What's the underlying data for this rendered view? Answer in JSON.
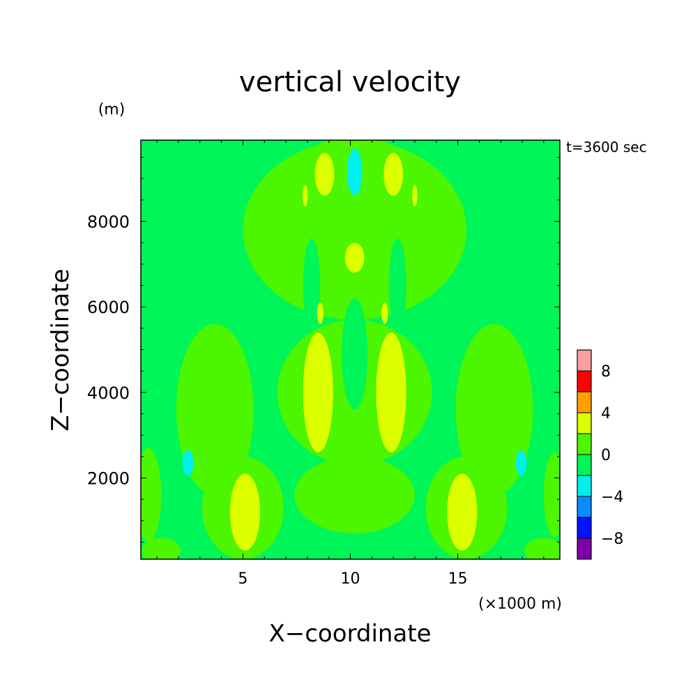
{
  "chart_data": {
    "type": "contour",
    "title": "vertical velocity",
    "time_label": "t=3600 sec",
    "xlabel": "X−coordinate",
    "ylabel": "Z−coordinate",
    "x_unit": "(×1000 m)",
    "y_unit": "(m)",
    "xlim": [
      0.25,
      19.75
    ],
    "ylim": [
      100,
      9900
    ],
    "x_ticks": [
      5,
      10,
      15
    ],
    "x_tick_labels": [
      "5",
      "10",
      "15"
    ],
    "y_ticks": [
      2000,
      4000,
      6000,
      8000
    ],
    "y_tick_labels": [
      "2000",
      "4000",
      "6000",
      "8000"
    ],
    "colorbar": {
      "levels": [
        -10,
        -8,
        -6,
        -4,
        -2,
        0,
        2,
        4,
        6,
        8,
        10
      ],
      "labels": [
        "−8",
        "−4",
        "0",
        "4",
        "8"
      ],
      "label_values": [
        -8,
        -4,
        0,
        4,
        8
      ],
      "colors": [
        "#7f00a8",
        "#0015ff",
        "#0a8cff",
        "#00f0f0",
        "#00f558",
        "#4cf500",
        "#dcff00",
        "#ffa000",
        "#ff0000",
        "#ffa0a0"
      ]
    },
    "background_level_color": "#00f558",
    "regions": [
      {
        "level": "0 to 2",
        "color": "#4cf500",
        "shape": "ellipse",
        "cx": 10.2,
        "cy": 7800,
        "rx": 5.2,
        "ry": 2100
      },
      {
        "level": "0 to 2",
        "color": "#4cf500",
        "shape": "ellipse",
        "cx": 10.2,
        "cy": 4000,
        "rx": 3.6,
        "ry": 1700
      },
      {
        "level": "0 to 2",
        "color": "#4cf500",
        "shape": "ellipse",
        "cx": 10.2,
        "cy": 8700,
        "rx": 3.2,
        "ry": 1300
      },
      {
        "level": "0 to 2",
        "color": "#4cf500",
        "shape": "ellipse",
        "cx": 10.2,
        "cy": 1600,
        "rx": 2.8,
        "ry": 900
      },
      {
        "level": "0 to 2",
        "color": "#4cf500",
        "shape": "ellipse",
        "cx": 3.7,
        "cy": 3600,
        "rx": 1.8,
        "ry": 2000
      },
      {
        "level": "0 to 2",
        "color": "#4cf500",
        "shape": "ellipse",
        "cx": 5.0,
        "cy": 1300,
        "rx": 1.9,
        "ry": 1200
      },
      {
        "level": "0 to 2",
        "color": "#4cf500",
        "shape": "ellipse",
        "cx": 16.7,
        "cy": 3600,
        "rx": 1.8,
        "ry": 2000
      },
      {
        "level": "0 to 2",
        "color": "#4cf500",
        "shape": "ellipse",
        "cx": 15.4,
        "cy": 1300,
        "rx": 1.9,
        "ry": 1200
      },
      {
        "level": "0 to 2",
        "color": "#4cf500",
        "shape": "ellipse",
        "cx": 0.6,
        "cy": 1600,
        "rx": 0.6,
        "ry": 1100
      },
      {
        "level": "0 to 2",
        "color": "#4cf500",
        "shape": "ellipse",
        "cx": 19.5,
        "cy": 1600,
        "rx": 0.5,
        "ry": 1000
      },
      {
        "level": "0 to 2",
        "color": "#4cf500",
        "shape": "ellipse",
        "cx": 1.2,
        "cy": 300,
        "rx": 0.9,
        "ry": 300
      },
      {
        "level": "0 to 2",
        "color": "#4cf500",
        "shape": "ellipse",
        "cx": 19.0,
        "cy": 300,
        "rx": 0.9,
        "ry": 300
      },
      {
        "level": "-2 to 0",
        "color": "#00f558",
        "shape": "ellipse",
        "cx": 10.2,
        "cy": 4900,
        "rx": 0.6,
        "ry": 1300
      },
      {
        "level": "-2 to 0",
        "color": "#00f558",
        "shape": "ellipse",
        "cx": 8.2,
        "cy": 6500,
        "rx": 0.4,
        "ry": 1100
      },
      {
        "level": "-2 to 0",
        "color": "#00f558",
        "shape": "ellipse",
        "cx": 12.2,
        "cy": 6500,
        "rx": 0.4,
        "ry": 1100
      },
      {
        "level": "2 to 4",
        "color": "#dcff00",
        "shape": "ellipse",
        "cx": 8.5,
        "cy": 4000,
        "rx": 0.7,
        "ry": 1400
      },
      {
        "level": "2 to 4",
        "color": "#dcff00",
        "shape": "ellipse",
        "cx": 11.9,
        "cy": 4000,
        "rx": 0.7,
        "ry": 1400
      },
      {
        "level": "2 to 4",
        "color": "#dcff00",
        "shape": "ellipse",
        "cx": 5.1,
        "cy": 1200,
        "rx": 0.7,
        "ry": 900
      },
      {
        "level": "2 to 4",
        "color": "#dcff00",
        "shape": "ellipse",
        "cx": 15.2,
        "cy": 1200,
        "rx": 0.7,
        "ry": 900
      },
      {
        "level": "2 to 4",
        "color": "#dcff00",
        "shape": "ellipse",
        "cx": 8.8,
        "cy": 9100,
        "rx": 0.45,
        "ry": 500
      },
      {
        "level": "2 to 4",
        "color": "#dcff00",
        "shape": "ellipse",
        "cx": 12.0,
        "cy": 9100,
        "rx": 0.45,
        "ry": 500
      },
      {
        "level": "2 to 4",
        "color": "#dcff00",
        "shape": "ellipse",
        "cx": 10.2,
        "cy": 7150,
        "rx": 0.45,
        "ry": 350
      },
      {
        "level": "2 to 4",
        "color": "#dcff00",
        "shape": "ellipse",
        "cx": 8.6,
        "cy": 5850,
        "rx": 0.15,
        "ry": 250
      },
      {
        "level": "2 to 4",
        "color": "#dcff00",
        "shape": "ellipse",
        "cx": 11.6,
        "cy": 5850,
        "rx": 0.15,
        "ry": 250
      },
      {
        "level": "2 to 4",
        "color": "#dcff00",
        "shape": "ellipse",
        "cx": 7.9,
        "cy": 8600,
        "rx": 0.12,
        "ry": 250
      },
      {
        "level": "2 to 4",
        "color": "#dcff00",
        "shape": "ellipse",
        "cx": 13.0,
        "cy": 8600,
        "rx": 0.12,
        "ry": 250
      },
      {
        "level": "-4 to -2",
        "color": "#00f0f0",
        "shape": "ellipse",
        "cx": 10.2,
        "cy": 9150,
        "rx": 0.35,
        "ry": 550
      },
      {
        "level": "-4 to -2",
        "color": "#00f0f0",
        "shape": "ellipse",
        "cx": 2.45,
        "cy": 2350,
        "rx": 0.25,
        "ry": 300
      },
      {
        "level": "-4 to -2",
        "color": "#00f0f0",
        "shape": "ellipse",
        "cx": 17.95,
        "cy": 2350,
        "rx": 0.25,
        "ry": 300
      }
    ]
  }
}
